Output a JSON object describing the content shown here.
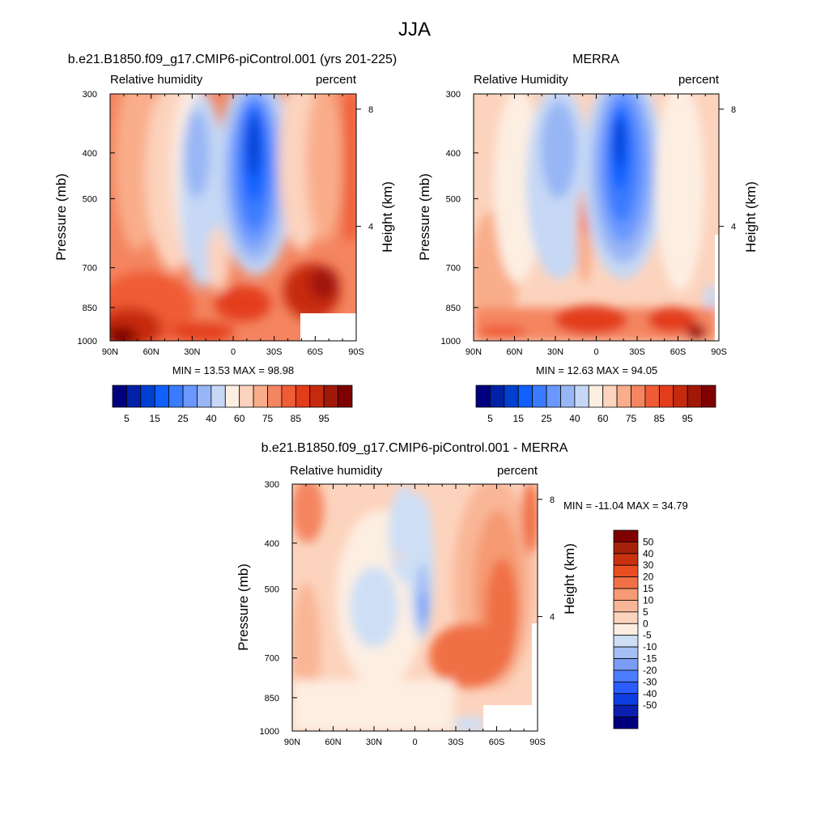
{
  "figure": {
    "title": "JJA"
  },
  "colors": {
    "rh_scale": [
      "#00007f",
      "#0020a8",
      "#0040d0",
      "#1060ff",
      "#3a7cff",
      "#6a98ff",
      "#98b6f5",
      "#c6d8f5",
      "#fdeee2",
      "#fcd3bd",
      "#f9ad8a",
      "#f48560",
      "#ef5c35",
      "#e33c1a",
      "#c62a0e",
      "#a01808",
      "#7f0000"
    ],
    "diff_scale": [
      "#00007f",
      "#0a1fb0",
      "#0f3ee0",
      "#2a5cff",
      "#4d7dff",
      "#7a9cf5",
      "#a5bff5",
      "#cedff5",
      "#fdeee2",
      "#fcd3bd",
      "#f9b696",
      "#f59a72",
      "#f07045",
      "#e84e22",
      "#c93010",
      "#a5210a",
      "#7f0000"
    ]
  },
  "chart_data": [
    {
      "type": "heatmap",
      "title": "b.e21.B1850.f09_g17.CMIP6-piControl.001 (yrs 201-225)",
      "left_label": "Relative humidity",
      "right_label": "percent",
      "ylabel": "Pressure (mb)",
      "ylabel_right": "Height (km)",
      "x_ticks": [
        "90N",
        "60N",
        "30N",
        "0",
        "30S",
        "60S",
        "90S"
      ],
      "y_ticks": [
        "300",
        "400",
        "500",
        "700",
        "850",
        "1000"
      ],
      "y_ticks_right": [
        "8",
        "4"
      ],
      "stats": "MIN =  13.53  MAX =  98.98",
      "colorbar_labels": [
        "5",
        "15",
        "25",
        "40",
        "60",
        "75",
        "85",
        "95"
      ],
      "colorbar_levels": [
        5,
        10,
        15,
        20,
        25,
        30,
        40,
        50,
        60,
        65,
        70,
        75,
        80,
        85,
        90,
        95
      ],
      "ylim": [
        1000,
        300
      ],
      "xlim": [
        90,
        -90
      ]
    },
    {
      "type": "heatmap",
      "title": "MERRA",
      "left_label": "Relative Humidity",
      "right_label": "percent",
      "ylabel": "Pressure (mb)",
      "ylabel_right": "Height (km)",
      "x_ticks": [
        "90N",
        "60N",
        "30N",
        "0",
        "30S",
        "60S",
        "90S"
      ],
      "y_ticks": [
        "300",
        "400",
        "500",
        "700",
        "850",
        "1000"
      ],
      "y_ticks_right": [
        "8",
        "4"
      ],
      "stats": "MIN =  12.63  MAX =  94.05",
      "colorbar_labels": [
        "5",
        "15",
        "25",
        "40",
        "60",
        "75",
        "85",
        "95"
      ],
      "colorbar_levels": [
        5,
        10,
        15,
        20,
        25,
        30,
        40,
        50,
        60,
        65,
        70,
        75,
        80,
        85,
        90,
        95
      ],
      "ylim": [
        1000,
        300
      ],
      "xlim": [
        90,
        -90
      ]
    },
    {
      "type": "heatmap",
      "title": "b.e21.B1850.f09_g17.CMIP6-piControl.001 - MERRA",
      "left_label": "Relative humidity",
      "right_label": "percent",
      "ylabel": "Pressure (mb)",
      "ylabel_right": "Height (km)",
      "x_ticks": [
        "90N",
        "60N",
        "30N",
        "0",
        "30S",
        "60S",
        "90S"
      ],
      "y_ticks": [
        "300",
        "400",
        "500",
        "700",
        "850",
        "1000"
      ],
      "y_ticks_right": [
        "8",
        "4"
      ],
      "stats": "MIN = -11.04  MAX =  34.79",
      "colorbar_labels": [
        "50",
        "40",
        "30",
        "20",
        "15",
        "10",
        "5",
        "0",
        "-5",
        "-10",
        "-15",
        "-20",
        "-30",
        "-40",
        "-50"
      ],
      "colorbar_levels": [
        -50,
        -40,
        -30,
        -20,
        -15,
        -10,
        -5,
        0,
        5,
        10,
        15,
        20,
        30,
        40,
        50
      ],
      "ylim": [
        1000,
        300
      ],
      "xlim": [
        90,
        -90
      ]
    }
  ]
}
